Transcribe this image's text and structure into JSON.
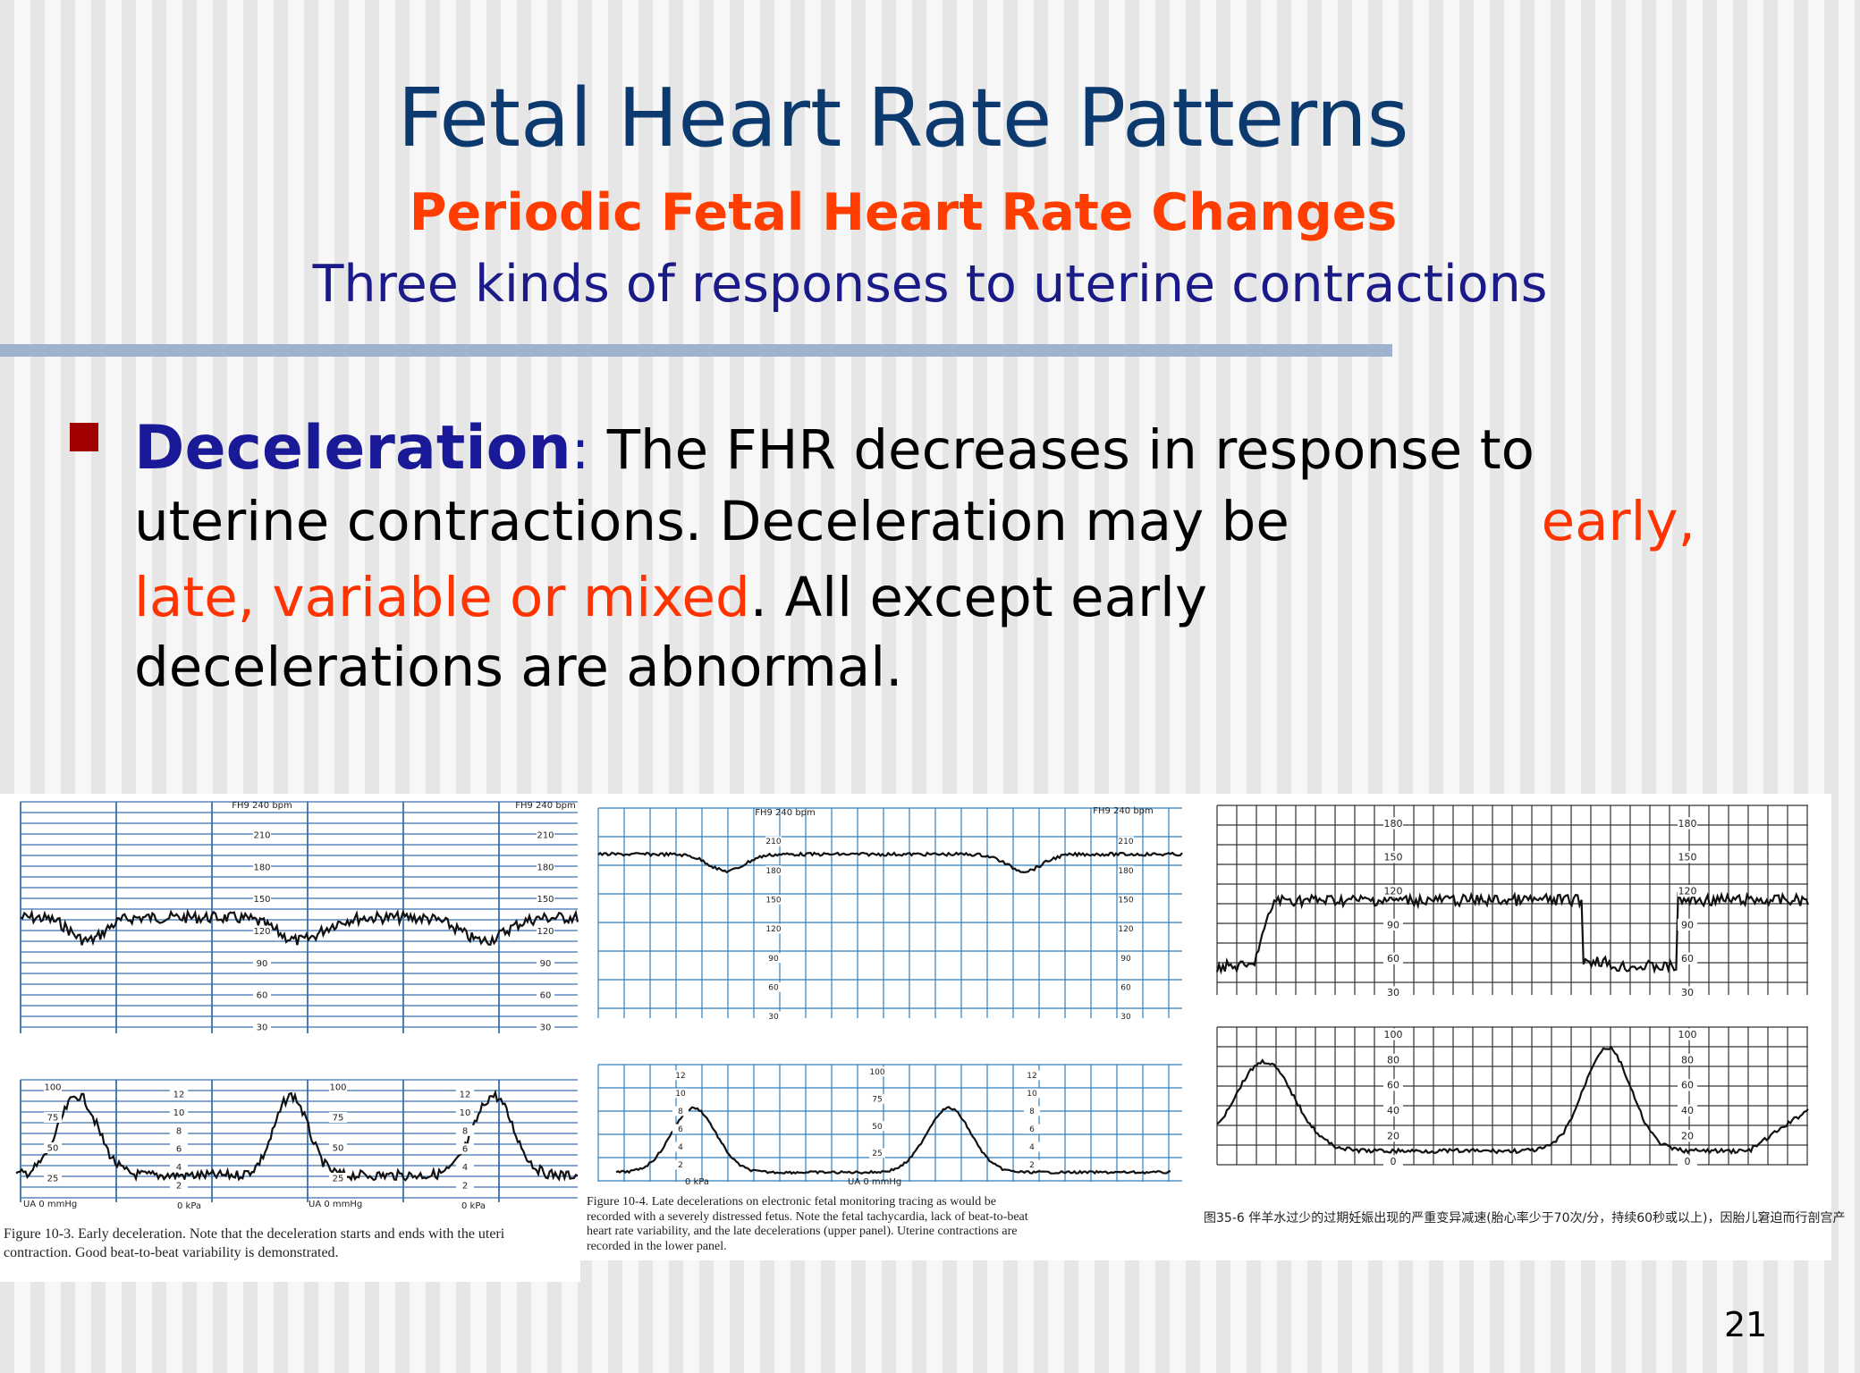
{
  "header": {
    "title": "Fetal Heart Rate Patterns",
    "subtitle": "Periodic Fetal Heart Rate Changes",
    "subtitle2": "Three kinds of responses to uterine contractions"
  },
  "bullet": {
    "lines": [
      [
        {
          "text": "Deceleration",
          "color": "#1a1a99",
          "bold": true
        },
        {
          "text": ": ",
          "color": "#1a1a99",
          "bold": false
        },
        {
          "text": "The FHR decreases in response to",
          "color": "#000000",
          "bold": false
        }
      ],
      [
        {
          "text": "uterine contractions. Deceleration may be",
          "color": "#000000",
          "bold": false
        },
        {
          "text": "early,",
          "color": "#ff3300",
          "bold": false
        }
      ],
      [
        {
          "text": "late, variable or mixed",
          "color": "#ff3300",
          "bold": false
        },
        {
          "text": ". All except early",
          "color": "#000000",
          "bold": false
        }
      ],
      [
        {
          "text": "decelerations are abnormal.",
          "color": "#000000",
          "bold": false
        }
      ]
    ]
  },
  "figures": [
    {
      "header": "FH9 240 bpm",
      "upper_scale": [
        210,
        180,
        150,
        120,
        90,
        60,
        30
      ],
      "lower_scale_mmhg": [
        100,
        75,
        50,
        25
      ],
      "lower_scale_kpa": [
        12,
        10,
        8,
        6,
        4,
        2
      ],
      "footer": [
        "UA 0 mmHg",
        "0 kPa"
      ],
      "caption": [
        "Figure 10-3. Early deceleration. Note that the deceleration starts and ends with the uteri",
        "contraction. Good beat-to-beat variability is demonstrated."
      ]
    },
    {
      "header": "FH9 240 bpm",
      "upper_scale": [
        210,
        180,
        150,
        120,
        90,
        60,
        30
      ],
      "lower_scale_mmhg": [
        100,
        75,
        50,
        25
      ],
      "lower_scale_kpa": [
        12,
        10,
        8,
        6,
        4,
        2
      ],
      "footer": [
        "UA 0 mmHg",
        "0 kPa"
      ],
      "caption": [
        "Figure 10-4. Late decelerations on electronic fetal monitoring tracing as would be",
        "recorded with a severely distressed fetus. Note the fetal tachycardia, lack of beat-to-beat",
        "heart rate variability, and the late decelerations (upper panel). Uterine contractions are",
        "recorded in the lower panel."
      ]
    },
    {
      "upper_scale": [
        180,
        150,
        120,
        90,
        60,
        30
      ],
      "lower_scale": [
        100,
        80,
        60,
        40,
        20,
        0
      ],
      "caption": [
        "图35-6  伴羊水过少的过期妊娠出现的严重变异减速(胎心率少于70次/分，持续60秒或以上)，因胎儿窘迫而行剖宫产"
      ]
    }
  ],
  "slide_number": "21"
}
